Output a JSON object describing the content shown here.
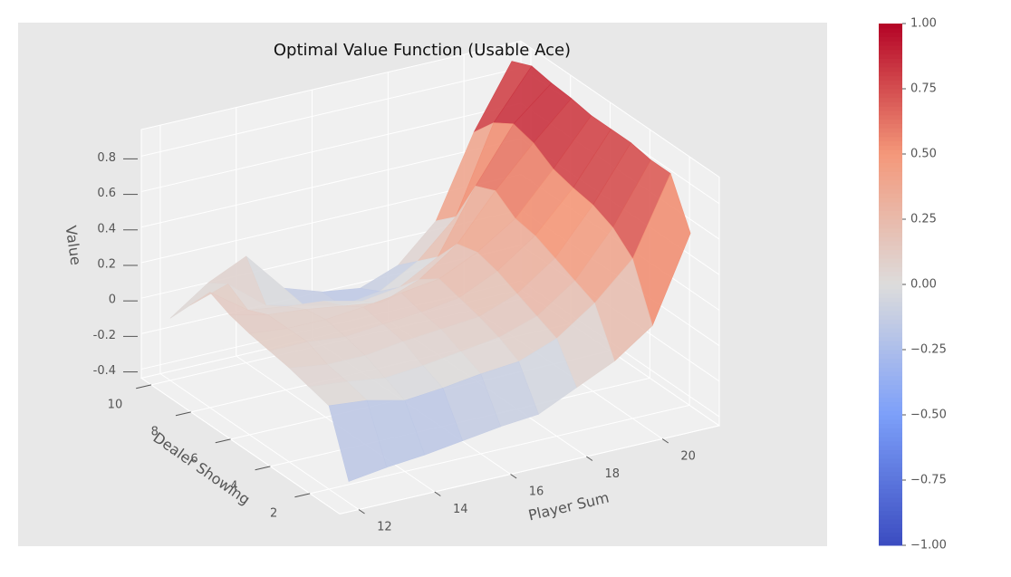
{
  "chart_data": {
    "type": "surface",
    "title": "Optimal Value Function (Usable Ace)",
    "xlabel": "Player Sum",
    "ylabel": "Dealer Showing",
    "zlabel": "Value",
    "x": [
      12,
      13,
      14,
      15,
      16,
      17,
      18,
      19,
      20,
      21
    ],
    "y": [
      1,
      2,
      3,
      4,
      5,
      6,
      7,
      8,
      9,
      10
    ],
    "z": [
      [
        -0.33,
        -0.3,
        -0.28,
        -0.25,
        -0.22,
        -0.2,
        -0.1,
        0.0,
        0.15,
        0.62
      ],
      [
        0.02,
        0.0,
        -0.05,
        -0.03,
        0.0,
        0.02,
        0.1,
        0.25,
        0.45,
        0.88
      ],
      [
        0.05,
        0.03,
        0.0,
        0.02,
        0.05,
        0.08,
        0.15,
        0.3,
        0.55,
        0.88
      ],
      [
        0.08,
        0.05,
        0.05,
        0.08,
        0.1,
        0.12,
        0.2,
        0.35,
        0.6,
        0.9
      ],
      [
        0.1,
        0.1,
        0.08,
        0.1,
        0.12,
        0.15,
        0.25,
        0.4,
        0.62,
        0.9
      ],
      [
        0.12,
        0.1,
        0.1,
        0.12,
        0.15,
        0.18,
        0.28,
        0.42,
        0.65,
        0.9
      ],
      [
        0.15,
        0.1,
        0.08,
        0.05,
        0.02,
        0.1,
        0.25,
        0.5,
        0.72,
        0.92
      ],
      [
        0.2,
        0.05,
        0.02,
        0.0,
        -0.05,
        -0.02,
        0.1,
        0.45,
        0.75,
        0.93
      ],
      [
        0.05,
        0.12,
        -0.05,
        -0.1,
        -0.15,
        -0.12,
        0.0,
        0.2,
        0.68,
        0.95
      ],
      [
        -0.1,
        0.05,
        0.15,
        -0.08,
        -0.15,
        -0.18,
        -0.1,
        0.1,
        0.55,
        0.9
      ]
    ],
    "xlim": [
      11.5,
      21.5
    ],
    "ylim": [
      0.5,
      10.5
    ],
    "zlim": [
      -0.45,
      0.95
    ],
    "xticks": [
      12,
      14,
      16,
      18,
      20
    ],
    "yticks": [
      2,
      4,
      6,
      8,
      10
    ],
    "zticks": [
      -0.4,
      -0.2,
      0.0,
      0.2,
      0.4,
      0.6,
      0.8
    ],
    "colormap": "coolwarm",
    "clim": [
      -1,
      1
    ],
    "cticks": [
      {
        "value": 1,
        "label": "1.00"
      },
      {
        "value": 0.75,
        "label": "0.75"
      },
      {
        "value": 0.5,
        "label": "0.50"
      },
      {
        "value": 0.25,
        "label": "0.25"
      },
      {
        "value": 0,
        "label": "0.00"
      },
      {
        "value": -0.25,
        "label": "−0.25"
      },
      {
        "value": -0.5,
        "label": "−0.50"
      },
      {
        "value": -0.75,
        "label": "−0.75"
      },
      {
        "value": -1,
        "label": "−1.00"
      }
    ],
    "grid": true
  }
}
